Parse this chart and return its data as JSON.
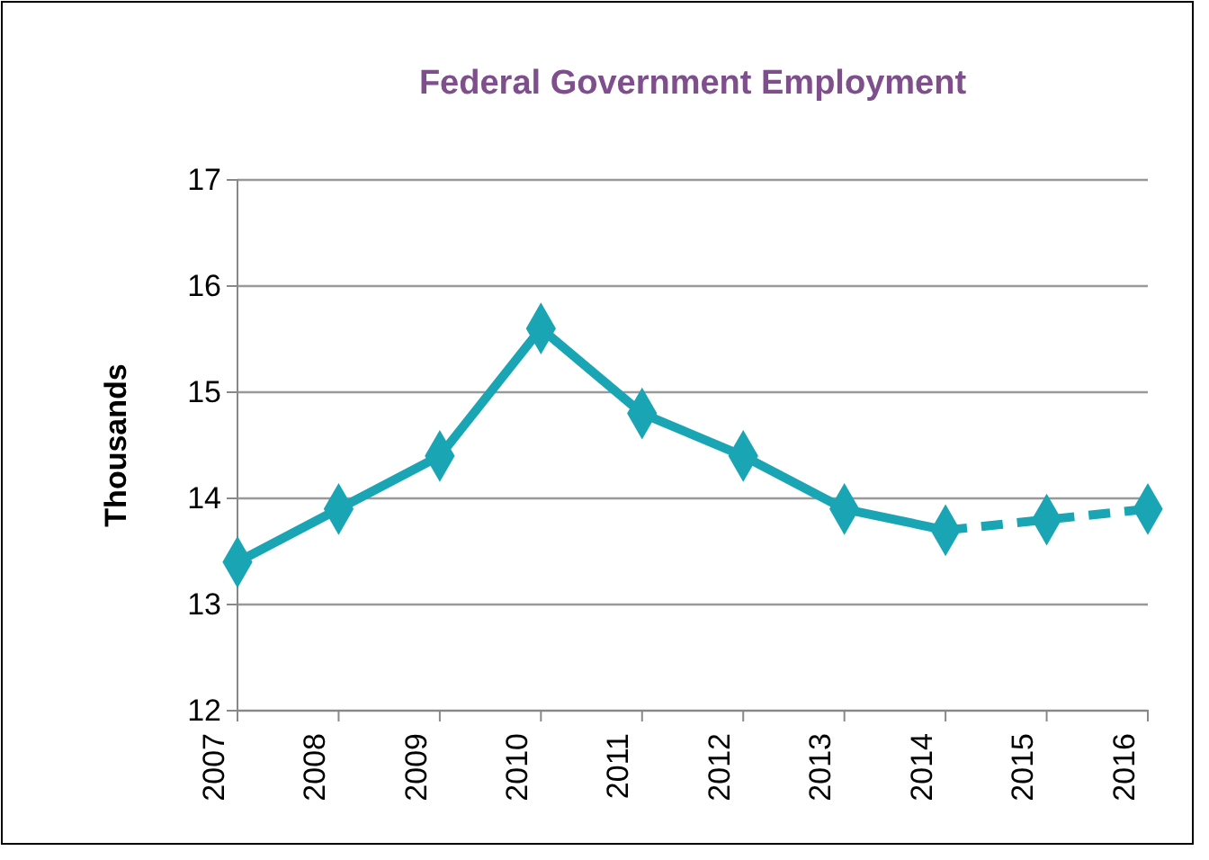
{
  "chart_data": {
    "type": "line",
    "title": "Federal Government Employment",
    "ylabel": "Thousands",
    "categories": [
      "2007",
      "2008",
      "2009",
      "2010",
      "2011",
      "2012",
      "2013",
      "2014",
      "2015",
      "2016"
    ],
    "series": [
      {
        "color": "#1aa5b5",
        "line_style": "solid",
        "values": [
          13.4,
          13.9,
          14.4,
          15.6,
          14.8,
          14.4,
          13.9,
          13.7,
          null,
          null
        ]
      },
      {
        "color": "#1aa5b5",
        "line_style": "dashed",
        "values": [
          null,
          null,
          null,
          null,
          null,
          null,
          null,
          13.7,
          13.8,
          13.9
        ]
      }
    ],
    "ylim": [
      12,
      17
    ],
    "yticks": [
      12,
      13,
      14,
      15,
      16,
      17
    ],
    "grid": "y",
    "marker": "diamond"
  }
}
